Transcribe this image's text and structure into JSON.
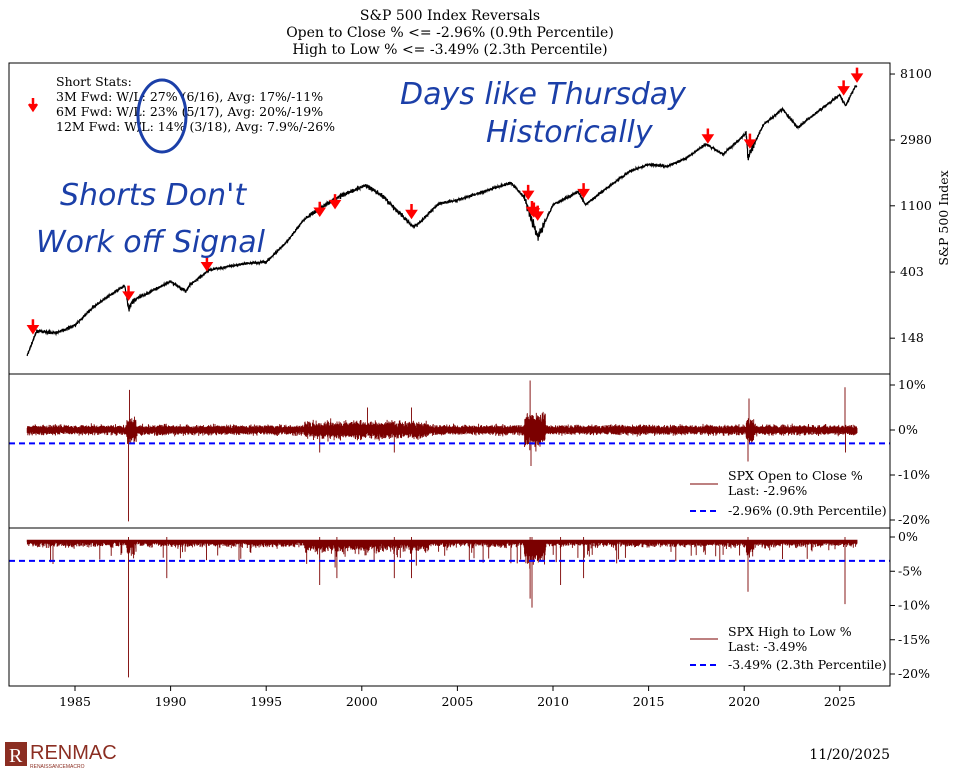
{
  "chart_data": [
    {
      "type": "line",
      "title": "S&P 500 Index Reversals",
      "subtitle": [
        "Open to Close % <= -2.96% (0.9th Percentile)",
        "High to Low % <= -3.49% (2.3th Percentile)"
      ],
      "ylabel": "S&P 500 Index",
      "yscale": "log",
      "yticks": [
        "8100",
        "2980",
        "1100",
        "403",
        "148"
      ],
      "ytick_values": [
        8100,
        2980,
        1100,
        403,
        148
      ],
      "series": [
        {
          "x": [
            1982.5,
            1983,
            1984,
            1985,
            1986,
            1987.6,
            1987.8,
            1988,
            1990,
            1990.8,
            1991,
            1992,
            1994,
            1995,
            1996,
            1997,
            1998,
            1999,
            2000.2,
            2001,
            2002.7,
            2003,
            2004,
            2005,
            2007.8,
            2008.5,
            2009.2,
            2010,
            2011.3,
            2011.7,
            2013,
            2014,
            2015,
            2016,
            2017,
            2018,
            2018.9,
            2020.1,
            2020.2,
            2021,
            2022,
            2022.8,
            2024,
            2025,
            2025.3,
            2025.8
          ],
          "values": [
            114,
            165,
            160,
            180,
            240,
            330,
            230,
            260,
            350,
            300,
            330,
            415,
            460,
            470,
            620,
            900,
            1100,
            1300,
            1500,
            1300,
            800,
            850,
            1130,
            1200,
            1560,
            1250,
            680,
            1120,
            1360,
            1120,
            1500,
            1850,
            2060,
            2000,
            2280,
            2800,
            2400,
            3300,
            2300,
            3750,
            4750,
            3600,
            4750,
            5900,
            5000,
            6700
          ]
        }
      ],
      "signals": {
        "marker": "red-down-arrow",
        "x": [
          1982.8,
          1987.8,
          1991.9,
          1997.8,
          1998.6,
          2002.6,
          2008.7,
          2008.9,
          2009.0,
          2009.2,
          2011.6,
          2018.1,
          2020.3,
          2025.2,
          2025.9
        ],
        "values": [
          150,
          250,
          390,
          890,
          1000,
          860,
          1150,
          900,
          880,
          840,
          1180,
          2700,
          2500,
          5600,
          6800
        ]
      },
      "stats": {
        "title": "Short Stats:",
        "lines": [
          "3M Fwd:  W/L: 27% (6/16), Avg: 17%/-11%",
          "6M Fwd:  W/L: 23% (5/17), Avg: 20%/-19%",
          "12M Fwd:  W/L: 14% (3/18), Avg: 7.9%/-26%"
        ]
      },
      "annotations": [
        "Days like Thursday",
        "Historically",
        "Shorts Don't",
        "Work off Signal"
      ]
    },
    {
      "type": "line",
      "yticks": [
        "10%",
        "0%",
        "-10%",
        "-20%"
      ],
      "ytick_values": [
        10,
        0,
        -10,
        -20
      ],
      "series": [
        {
          "name": "SPX Open to Close %",
          "last": "Last: -2.96%",
          "color": "#7b0000",
          "spikes": {
            "x": [
              1987.8,
              1987.85,
              1997.8,
              2000.3,
              2001.7,
              2002.6,
              2008.8,
              2008.85,
              2020.2,
              2020.25,
              2025.27,
              2025.3
            ],
            "values": [
              -20.3,
              8.9,
              -5,
              5,
              -5,
              5,
              11,
              -8,
              -7,
              7,
              9.5,
              -5
            ]
          }
        },
        {
          "name": "-2.96% (0.9th Percentile)",
          "color": "#0000ff",
          "level": -2.96
        }
      ]
    },
    {
      "type": "line",
      "yticks": [
        "0%",
        "-5%",
        "-10%",
        "-15%",
        "-20%"
      ],
      "ytick_values": [
        0,
        -5,
        -10,
        -15,
        -20
      ],
      "xticks": [
        "1985",
        "1990",
        "1995",
        "2000",
        "2005",
        "2010",
        "2015",
        "2020",
        "2025"
      ],
      "xtick_values": [
        1985,
        1990,
        1995,
        2000,
        2005,
        2010,
        2015,
        2020,
        2025
      ],
      "series": [
        {
          "name": "SPX High to Low %",
          "last": "Last: -3.49%",
          "color": "#7b0000",
          "spikes": {
            "x": [
              1987.8,
              1989.8,
              1997.8,
              1998.7,
              2001.7,
              2002.6,
              2008.8,
              2008.9,
              2010.4,
              2011.6,
              2020.2,
              2025.27
            ],
            "values": [
              -20.5,
              -6,
              -7,
              -6,
              -6,
              -6,
              -9,
              -10.3,
              -7,
              -6,
              -8,
              -9.8
            ]
          }
        },
        {
          "name": "-3.49% (2.3th Percentile)",
          "color": "#0000ff",
          "level": -3.49
        }
      ]
    }
  ],
  "footer": {
    "logo": "RENMAC",
    "logo_sub": "RENAISSANCEMACRO",
    "date": "11/20/2025"
  }
}
